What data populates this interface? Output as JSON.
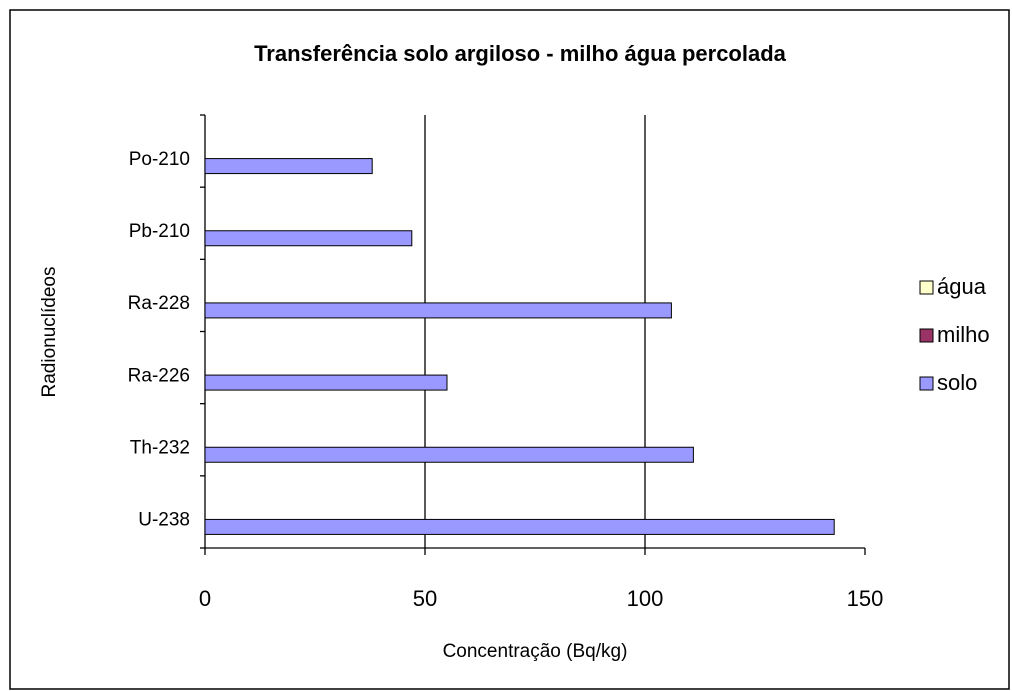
{
  "chart_data": {
    "type": "bar",
    "orientation": "horizontal",
    "title": "Transferência solo argiloso - milho água percolada",
    "x_label": "Concentração (Bq/kg)",
    "y_label": "Radionuclídeos",
    "categories": [
      "U-238",
      "Th-232",
      "Ra-226",
      "Ra-228",
      "Pb-210",
      "Po-210"
    ],
    "series": [
      {
        "name": "água",
        "color": "#ffffcc",
        "values": [
          0,
          0,
          0,
          0,
          0,
          0
        ]
      },
      {
        "name": "milho",
        "color": "#993366",
        "values": [
          0,
          0,
          0,
          0,
          0,
          0
        ]
      },
      {
        "name": "solo",
        "color": "#9999ff",
        "values": [
          143,
          111,
          55,
          106,
          47,
          38
        ]
      }
    ],
    "xlim": [
      0,
      150
    ],
    "xticks": [
      0,
      50,
      100,
      150
    ],
    "grid": true,
    "legend": "right"
  }
}
